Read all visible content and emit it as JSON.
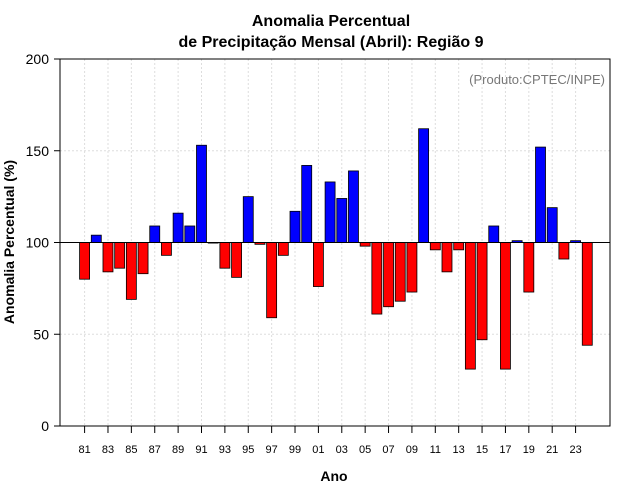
{
  "chart_data": {
    "type": "bar",
    "title_line1": "Anomalia Percentual",
    "title_line2": "de Precipitação Mensal (Abril): Região 9",
    "xlabel": "Ano",
    "ylabel": "Anomalia Percentual (%)",
    "credit": "(Produto:CPTEC/INPE)",
    "ylim": [
      0,
      200
    ],
    "yticks": [
      0,
      50,
      100,
      150,
      200
    ],
    "baseline": 100,
    "grid": true,
    "colors": {
      "above": "#0000ff",
      "below": "#ff0000",
      "edge": "#000000",
      "grid": "#dddddd"
    },
    "xtick_labels": [
      "81",
      "83",
      "85",
      "87",
      "89",
      "91",
      "93",
      "95",
      "97",
      "99",
      "01",
      "03",
      "05",
      "07",
      "09",
      "11",
      "13",
      "15",
      "17",
      "19",
      "21",
      "23"
    ],
    "categories": [
      "1981",
      "1982",
      "1983",
      "1984",
      "1985",
      "1986",
      "1987",
      "1988",
      "1989",
      "1990",
      "1991",
      "1992",
      "1993",
      "1994",
      "1995",
      "1996",
      "1997",
      "1998",
      "1999",
      "2000",
      "2001",
      "2002",
      "2003",
      "2004",
      "2005",
      "2006",
      "2007",
      "2008",
      "2009",
      "2010",
      "2011",
      "2012",
      "2013",
      "2014",
      "2015",
      "2016",
      "2017",
      "2018",
      "2019",
      "2020",
      "2021",
      "2022",
      "2023",
      "2024"
    ],
    "values": [
      80,
      104,
      84,
      86,
      69,
      83,
      109,
      93,
      116,
      109,
      153,
      100,
      86,
      81,
      125,
      99,
      59,
      93,
      117,
      142,
      76,
      133,
      124,
      139,
      98,
      61,
      65,
      68,
      73,
      162,
      96,
      84,
      96,
      31,
      47,
      109,
      31,
      101,
      73,
      152,
      119,
      91,
      101,
      44
    ]
  }
}
